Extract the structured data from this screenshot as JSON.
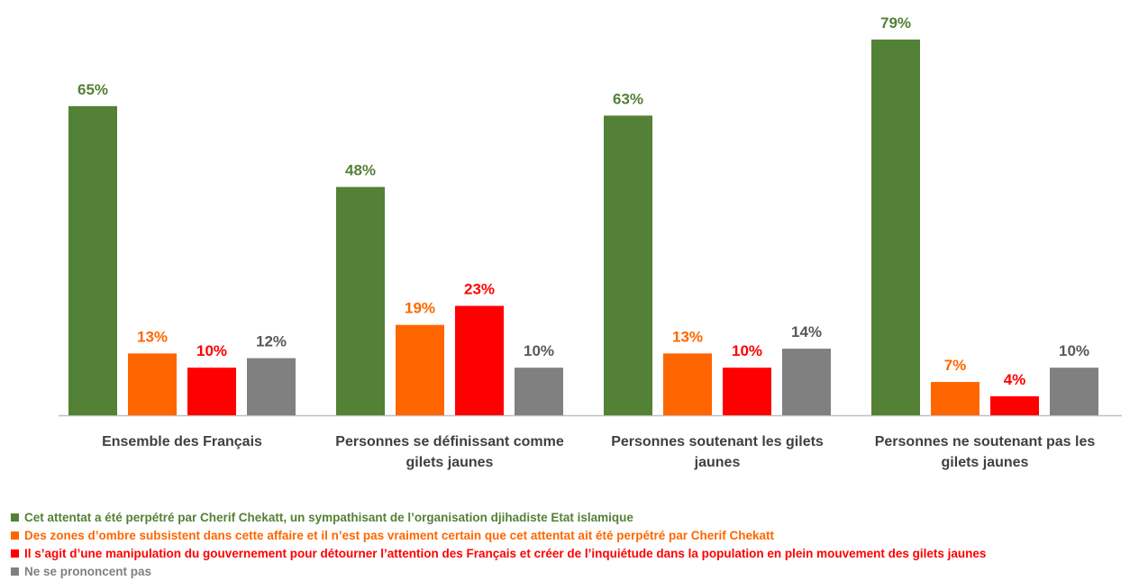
{
  "chart_data": {
    "type": "bar",
    "categories": [
      "Ensemble des Français",
      "Personnes se définissant comme gilets jaunes",
      "Personnes soutenant les gilets jaunes",
      "Personnes ne soutenant pas les gilets jaunes"
    ],
    "series": [
      {
        "name": "Cet attentat a été perpétré par Cherif Chekatt, un sympathisant de l’organisation djihadiste Etat islamique",
        "color": "#538135",
        "values": [
          65,
          48,
          63,
          79
        ],
        "value_labels": [
          "65%",
          "48%",
          "63%",
          "79%"
        ]
      },
      {
        "name": "Des zones d’ombre subsistent dans cette affaire et il n’est pas vraiment certain que cet attentat ait été perpétré par Cherif Chekatt",
        "color": "#ff6600",
        "values": [
          13,
          19,
          13,
          7
        ],
        "value_labels": [
          "13%",
          "19%",
          "13%",
          "7%"
        ]
      },
      {
        "name": "Il s’agit d’une manipulation du gouvernement pour détourner l’attention des Français et créer de l’inquiétude dans la population en plein mouvement des gilets jaunes",
        "color": "#ff0000",
        "values": [
          10,
          23,
          10,
          4
        ],
        "value_labels": [
          "10%",
          "23%",
          "10%",
          "4%"
        ]
      },
      {
        "name": "Ne se prononcent pas",
        "color": "#808080",
        "values": [
          12,
          10,
          14,
          10
        ],
        "value_labels": [
          "12%",
          "10%",
          "14%",
          "10%"
        ]
      }
    ]
  }
}
